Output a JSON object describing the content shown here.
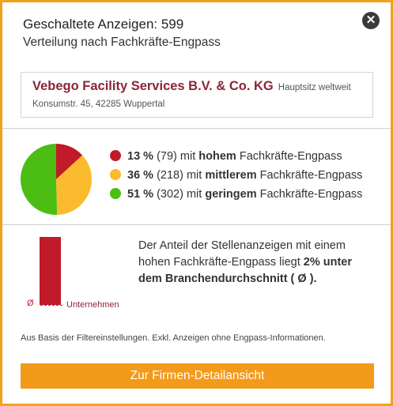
{
  "header": {
    "title": "Geschaltete Anzeigen: 599",
    "subtitle": "Verteilung nach Fachkräfte-Engpass",
    "close_icon": "close-icon"
  },
  "company": {
    "name": "Vebego Facility Services B.V. & Co. KG",
    "hq_label": "Hauptsitz weltweit",
    "address": "Konsumstr. 45, 42285 Wuppertal"
  },
  "distribution": {
    "items": [
      {
        "percent": "13 %",
        "count": "(79) mit",
        "level": "hohem",
        "suffix": "Fachkräfte-Engpass",
        "value": 79,
        "color": "#c11a2a"
      },
      {
        "percent": "36 %",
        "count": "(218) mit",
        "level": "mittlerem",
        "suffix": "Fachkräfte-Engpass",
        "value": 218,
        "color": "#fbbb2e"
      },
      {
        "percent": "51 %",
        "count": "(302) mit",
        "level": "geringem",
        "suffix": "Fachkräfte-Engpass",
        "value": 302,
        "color": "#4cbe13"
      }
    ]
  },
  "comparison": {
    "text_prefix": "Der Anteil der Stellenanzeigen mit einem hohen Fachkräfte-Engpass liegt",
    "text_bold": "2% unter dem Branchendurchschnitt ( Ø ).",
    "avg_symbol": "Ø",
    "company_label": "Unternehmen",
    "bar_color": "#c11a2a"
  },
  "footnote": "Aus Basis der Filtereinstellungen. Exkl. Anzeigen ohne Engpass-Informationen.",
  "cta": {
    "label": "Zur Firmen-Detailansicht",
    "color": "#f39a1a"
  }
}
